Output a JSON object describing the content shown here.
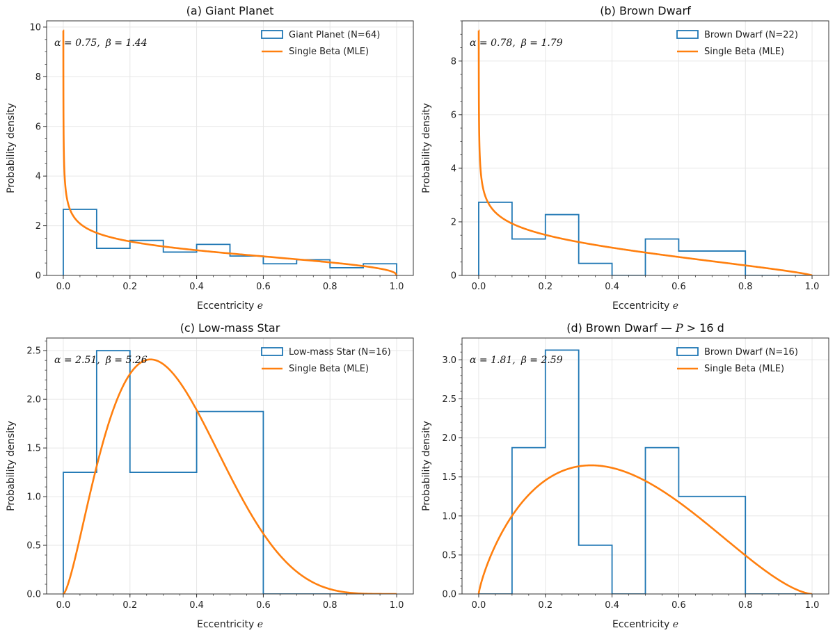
{
  "figure": {
    "xlabel_prefix": "Eccentricity",
    "xlabel_symbol": "e",
    "ylabel": "Probability density"
  },
  "chart_data": [
    {
      "type": "histogram+line",
      "title": "(a) Giant Planet",
      "annotation": {
        "alpha_label": "α = 0.75,",
        "beta_label": "β = 1.44"
      },
      "beta_params": {
        "alpha": 0.75,
        "beta": 1.44
      },
      "xlim": [
        -0.05,
        1.05
      ],
      "ylim": [
        0,
        10.25
      ],
      "xticks": [
        0.0,
        0.2,
        0.4,
        0.6,
        0.8,
        1.0
      ],
      "xtick_labels": [
        "0.0",
        "0.2",
        "0.4",
        "0.6",
        "0.8",
        "1.0"
      ],
      "yticks": [
        0,
        2,
        4,
        6,
        8,
        10
      ],
      "ytick_labels": [
        "0",
        "2",
        "4",
        "6",
        "8",
        "10"
      ],
      "bin_edges": [
        0,
        0.1,
        0.2,
        0.3,
        0.4,
        0.5,
        0.6,
        0.7,
        0.8,
        0.9,
        1.0
      ],
      "hist_values": [
        2.66,
        1.09,
        1.41,
        0.94,
        1.25,
        0.78,
        0.47,
        0.63,
        0.31,
        0.47
      ],
      "legend": [
        {
          "label": "Giant Planet (N=64)",
          "kind": "hist",
          "color": "#1f77b4"
        },
        {
          "label": "Single Beta (MLE)",
          "kind": "line",
          "color": "#ff7f0e"
        }
      ],
      "grid": true,
      "legend_position": "top-right"
    },
    {
      "type": "histogram+line",
      "title": "(b) Brown Dwarf",
      "annotation": {
        "alpha_label": "α = 0.78,",
        "beta_label": "β = 1.79"
      },
      "beta_params": {
        "alpha": 0.78,
        "beta": 1.79
      },
      "xlim": [
        -0.05,
        1.05
      ],
      "ylim": [
        0,
        9.5
      ],
      "xticks": [
        0.0,
        0.2,
        0.4,
        0.6,
        0.8,
        1.0
      ],
      "xtick_labels": [
        "0.0",
        "0.2",
        "0.4",
        "0.6",
        "0.8",
        "1.0"
      ],
      "yticks": [
        0,
        2,
        4,
        6,
        8
      ],
      "ytick_labels": [
        "0",
        "2",
        "4",
        "6",
        "8"
      ],
      "bin_edges": [
        0,
        0.1,
        0.2,
        0.3,
        0.4,
        0.5,
        0.6,
        0.7,
        0.8,
        0.9,
        1.0
      ],
      "hist_values": [
        2.73,
        1.36,
        2.27,
        0.45,
        0.0,
        1.36,
        0.91,
        0.91,
        0.0,
        0.0
      ],
      "legend": [
        {
          "label": "Brown Dwarf (N=22)",
          "kind": "hist",
          "color": "#1f77b4"
        },
        {
          "label": "Single Beta (MLE)",
          "kind": "line",
          "color": "#ff7f0e"
        }
      ],
      "grid": true,
      "legend_position": "top-right"
    },
    {
      "type": "histogram+line",
      "title": "(c) Low-mass Star",
      "annotation": {
        "alpha_label": "α = 2.51,",
        "beta_label": "β = 5.26"
      },
      "beta_params": {
        "alpha": 2.51,
        "beta": 5.26
      },
      "xlim": [
        -0.05,
        1.05
      ],
      "ylim": [
        0,
        2.63
      ],
      "xticks": [
        0.0,
        0.2,
        0.4,
        0.6,
        0.8,
        1.0
      ],
      "xtick_labels": [
        "0.0",
        "0.2",
        "0.4",
        "0.6",
        "0.8",
        "1.0"
      ],
      "yticks": [
        0,
        0.5,
        1.0,
        1.5,
        2.0,
        2.5
      ],
      "ytick_labels": [
        "0.0",
        "0.5",
        "1.0",
        "1.5",
        "2.0",
        "2.5"
      ],
      "bin_edges": [
        0,
        0.1,
        0.2,
        0.3,
        0.4,
        0.5,
        0.6,
        0.7,
        0.8,
        0.9,
        1.0
      ],
      "hist_values": [
        1.25,
        2.5,
        1.25,
        1.25,
        1.875,
        1.875,
        0.0,
        0.0,
        0.0,
        0.0
      ],
      "legend": [
        {
          "label": "Low-mass Star (N=16)",
          "kind": "hist",
          "color": "#1f77b4"
        },
        {
          "label": "Single Beta (MLE)",
          "kind": "line",
          "color": "#ff7f0e"
        }
      ],
      "grid": true,
      "legend_position": "top-right"
    },
    {
      "type": "histogram+line",
      "title": "(d) Brown Dwarf — P > 16 d",
      "title_parts": {
        "prefix": "(d) Brown Dwarf — ",
        "var": "P",
        "suffix": " > 16 d"
      },
      "annotation": {
        "alpha_label": "α = 1.81,",
        "beta_label": "β = 2.59"
      },
      "beta_params": {
        "alpha": 1.81,
        "beta": 2.59
      },
      "xlim": [
        -0.05,
        1.05
      ],
      "ylim": [
        0,
        3.28
      ],
      "xticks": [
        0.0,
        0.2,
        0.4,
        0.6,
        0.8,
        1.0
      ],
      "xtick_labels": [
        "0.0",
        "0.2",
        "0.4",
        "0.6",
        "0.8",
        "1.0"
      ],
      "yticks": [
        0,
        0.5,
        1.0,
        1.5,
        2.0,
        2.5,
        3.0
      ],
      "ytick_labels": [
        "0.0",
        "0.5",
        "1.0",
        "1.5",
        "2.0",
        "2.5",
        "3.0"
      ],
      "bin_edges": [
        0,
        0.1,
        0.2,
        0.3,
        0.4,
        0.5,
        0.6,
        0.7,
        0.8,
        0.9,
        1.0
      ],
      "hist_values": [
        0.0,
        1.875,
        3.125,
        0.625,
        0.0,
        1.875,
        1.25,
        1.25,
        0.0,
        0.0
      ],
      "legend": [
        {
          "label": "Brown Dwarf (N=16)",
          "kind": "hist",
          "color": "#1f77b4"
        },
        {
          "label": "Single Beta (MLE)",
          "kind": "line",
          "color": "#ff7f0e"
        }
      ],
      "grid": true,
      "legend_position": "top-right"
    }
  ]
}
